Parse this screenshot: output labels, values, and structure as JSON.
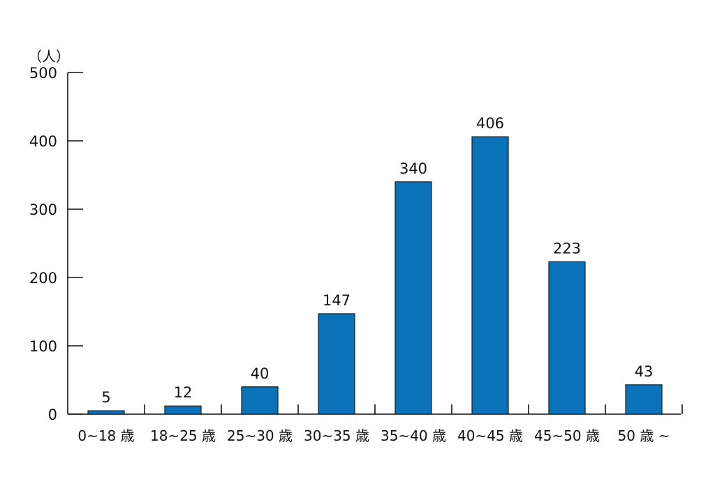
{
  "chart_data": {
    "type": "bar",
    "categories": [
      "0~18 歳",
      "18~25 歳",
      "25~30 歳",
      "30~35 歳",
      "35~40 歳",
      "40~45 歳",
      "45~50 歳",
      "50 歳 ~"
    ],
    "values": [
      5,
      12,
      40,
      147,
      340,
      406,
      223,
      43
    ],
    "ylabel": "（人）",
    "ylim": [
      0,
      500
    ],
    "yticks": [
      0,
      100,
      200,
      300,
      400,
      500
    ],
    "grid": false,
    "bar_color": "#0a72b8",
    "data_labels": true
  }
}
